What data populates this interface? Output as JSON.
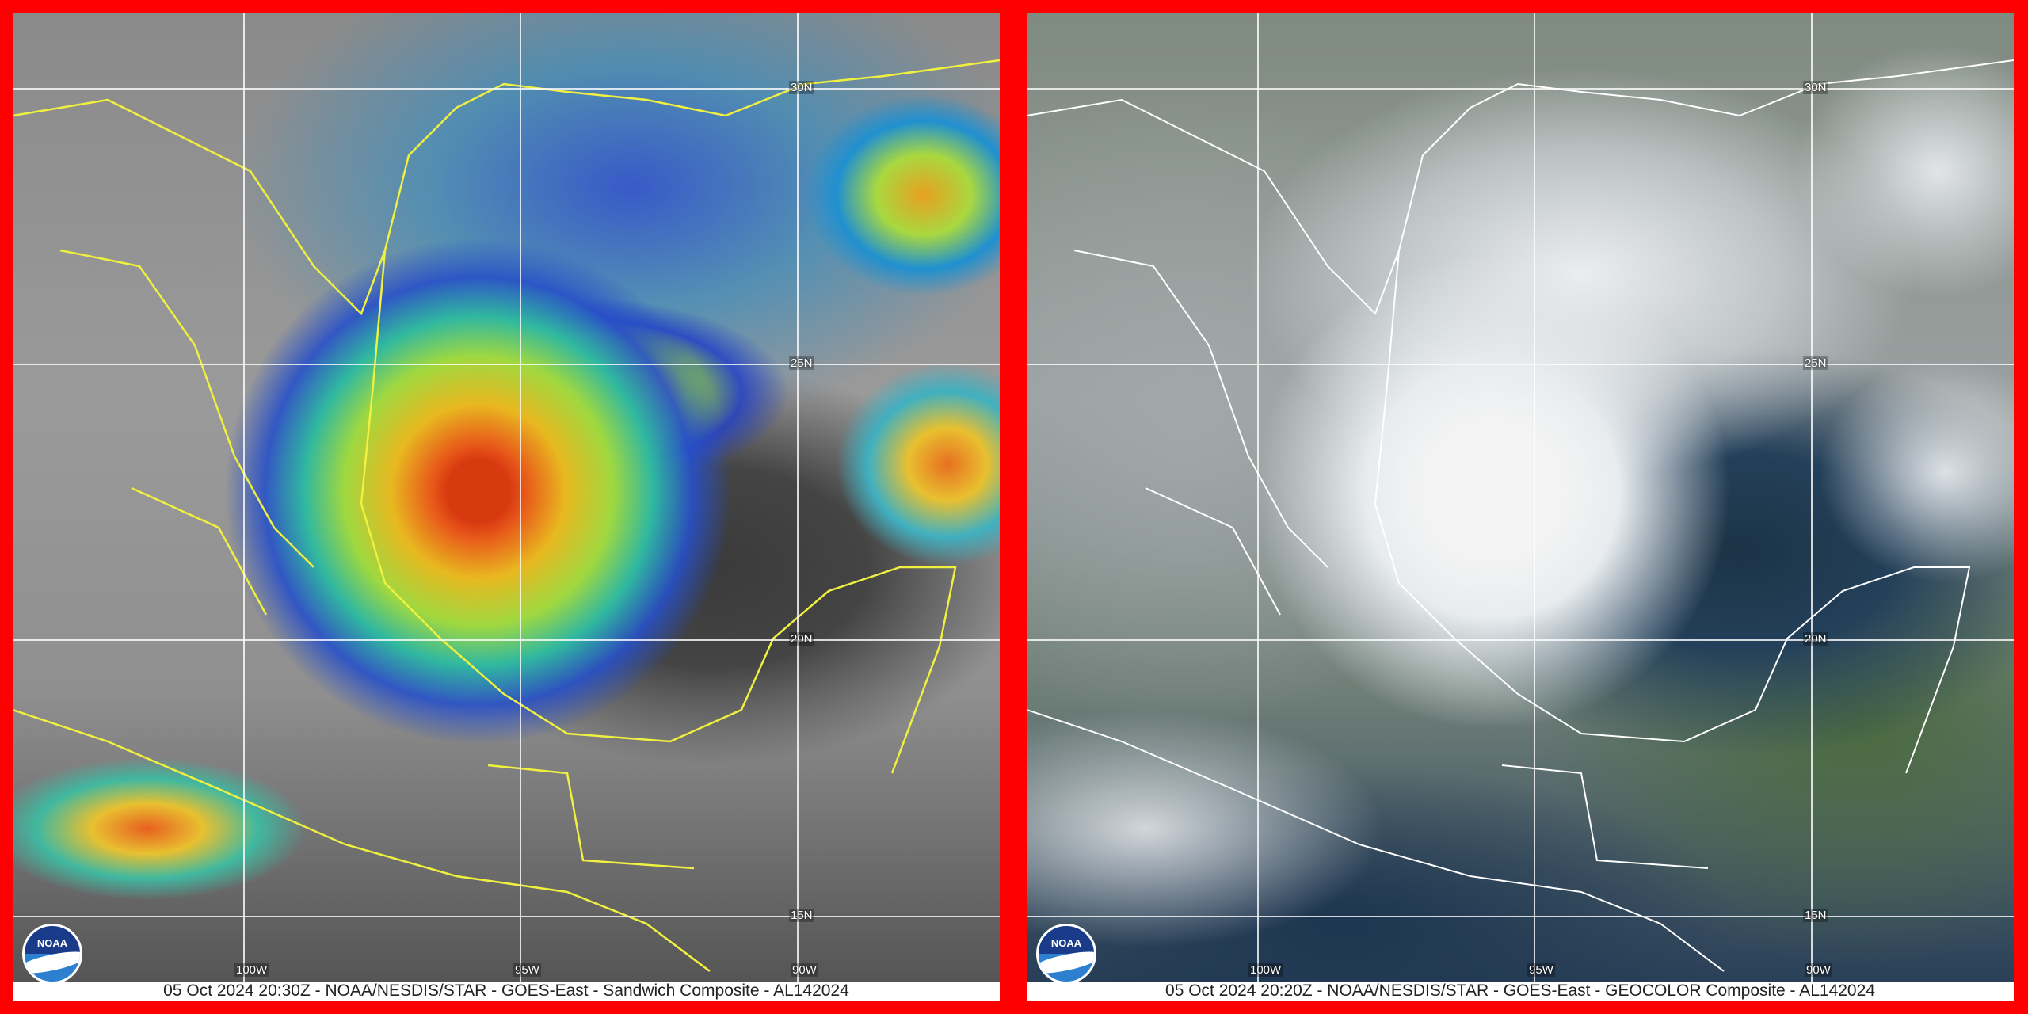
{
  "panels": [
    {
      "product": "Sandwich Composite",
      "coastline_color": "#f0f040",
      "caption": "05 Oct 2024 20:30Z - NOAA/NESDIS/STAR - GOES-East - Sandwich Composite - AL142024",
      "logo_text": "NOAA"
    },
    {
      "product": "GEOCOLOR Composite",
      "coastline_color": "#ffffff",
      "caption": "05 Oct 2024 20:20Z - NOAA/NESDIS/STAR - GOES-East - GEOCOLOR Composite - AL142024",
      "logo_text": "NOAA"
    }
  ],
  "grid": {
    "lat_labels": [
      "30N",
      "25N",
      "20N",
      "15N"
    ],
    "lon_labels": [
      "100W",
      "95W",
      "90W"
    ]
  },
  "frame_color": "#ff0000"
}
